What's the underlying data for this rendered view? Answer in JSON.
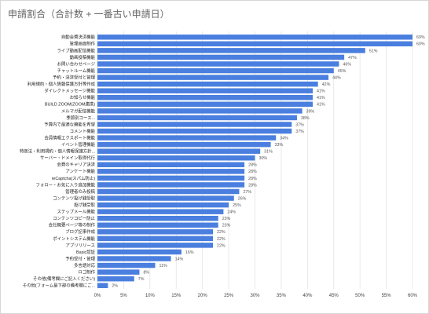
{
  "title": "申請割合（合計数 + 一番古い申請日）",
  "chart_data": {
    "type": "bar",
    "orientation": "horizontal",
    "title": "申請割合（合計数 + 一番古い申請日）",
    "xlabel": "",
    "ylabel": "",
    "xlim": [
      0,
      60
    ],
    "grid": true,
    "legend": "none",
    "colors": {
      "bar": "#4a7fdf",
      "grid": "#e3e3e3"
    },
    "x_ticks": [
      "0%",
      "5%",
      "10%",
      "15%",
      "20%",
      "25%",
      "30%",
      "35%",
      "40%",
      "45%",
      "50%",
      "55%",
      "60%"
    ],
    "categories": [
      "自動会費決済機能",
      "管理画面制作",
      "ライブ動画配信機能",
      "動画投稿機能",
      "お問い合わせページ",
      "チャットルーム機能",
      "予約・決済受付と管理",
      "利用規約・個人情報保護方針等作成",
      "ダイレクトメッセージ機能",
      "お知らせ機能",
      "BUILD ZOOM(ZOOM連携)",
      "メルマガ配信機能",
      "季節別コース...",
      "予算内で最適な機能を希望",
      "コメント機能",
      "会員情報エクスポート機能",
      "イベント管理機能",
      "特商法・利用規約・個人情報保護方針...",
      "サーバー・ドメイン取得代行",
      "会費のキャリア決済",
      "アンケート機能",
      "reCaptcha(スパム防止)",
      "フォロー・お気に入り追加機能",
      "管理者のみ投稿",
      "コンテンツ投げ銭受取",
      "投げ銭受取",
      "ステップメール機能",
      "コンテンツコピー防止",
      "会社概要ページ等の制作",
      "ブログ記事作成",
      "ポイントシステム機能",
      "アプリリリース",
      "Basic認証",
      "予約受付・管理",
      "多言語対応",
      "ロゴ制作",
      "その他(備考欄にご記入ください)",
      "その他(フォーム最下部の備考欄にご..."
    ],
    "values": [
      60,
      60,
      51,
      47,
      46,
      45,
      44,
      42,
      41,
      41,
      41,
      39,
      38,
      37,
      37,
      34,
      33,
      31,
      30,
      28,
      28,
      28,
      28,
      27,
      26,
      25,
      24,
      23,
      23,
      22,
      22,
      22,
      16,
      14,
      11,
      8,
      7,
      2
    ],
    "value_labels": [
      "60%",
      "60%",
      "51%",
      "47%",
      "46%",
      "45%",
      "44%",
      "42%",
      "41%",
      "41%",
      "41%",
      "39%",
      "38%",
      "37%",
      "37%",
      "34%",
      "33%",
      "31%",
      "30%",
      "28%",
      "28%",
      "28%",
      "28%",
      "27%",
      "26%",
      "25%",
      "24%",
      "23%",
      "23%",
      "22%",
      "22%",
      "22%",
      "16%",
      "14%",
      "11%",
      "8%",
      "7%",
      "2%"
    ]
  }
}
